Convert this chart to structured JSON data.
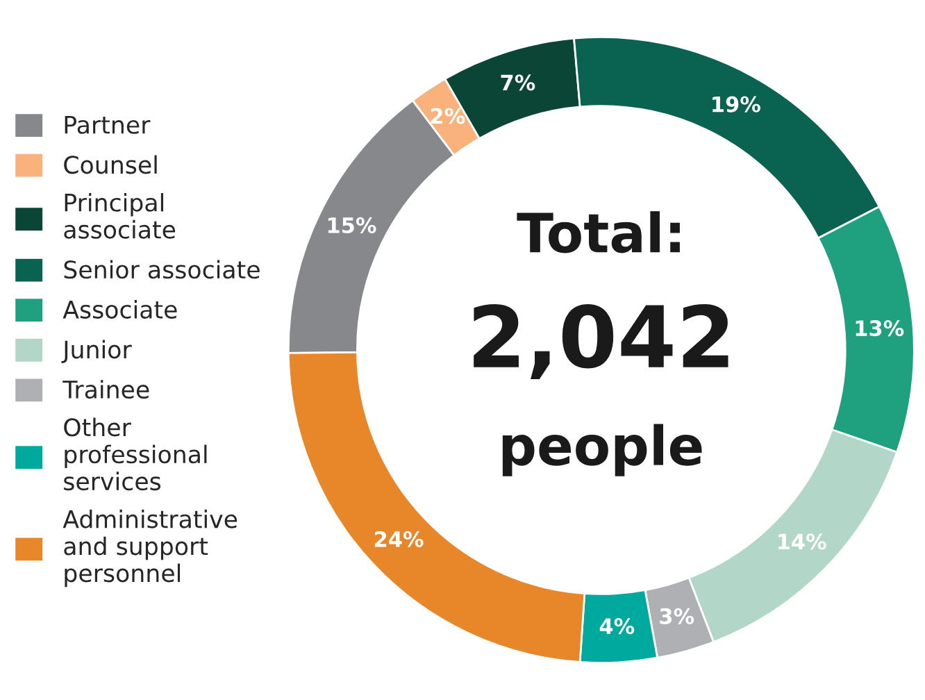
{
  "chart_data": {
    "type": "donut",
    "categories": [
      "Partner",
      "Counsel",
      "Principal associate",
      "Senior associate",
      "Associate",
      "Junior",
      "Trainee",
      "Other professional services",
      "Administrative and support personnel"
    ],
    "values": [
      15,
      2,
      7,
      19,
      13,
      14,
      3,
      4,
      24
    ],
    "colors": [
      "#87888c",
      "#f9b27c",
      "#0b4536",
      "#0a6350",
      "#1fa07e",
      "#b2d6c8",
      "#aeb0b3",
      "#00a99d",
      "#e8862a"
    ],
    "value_labels": [
      "15%",
      "2%",
      "7%",
      "19%",
      "13%",
      "14%",
      "3%",
      "4%",
      "24%"
    ],
    "annotations": [
      "Total:",
      "2,042",
      "people"
    ],
    "legend": "left"
  }
}
